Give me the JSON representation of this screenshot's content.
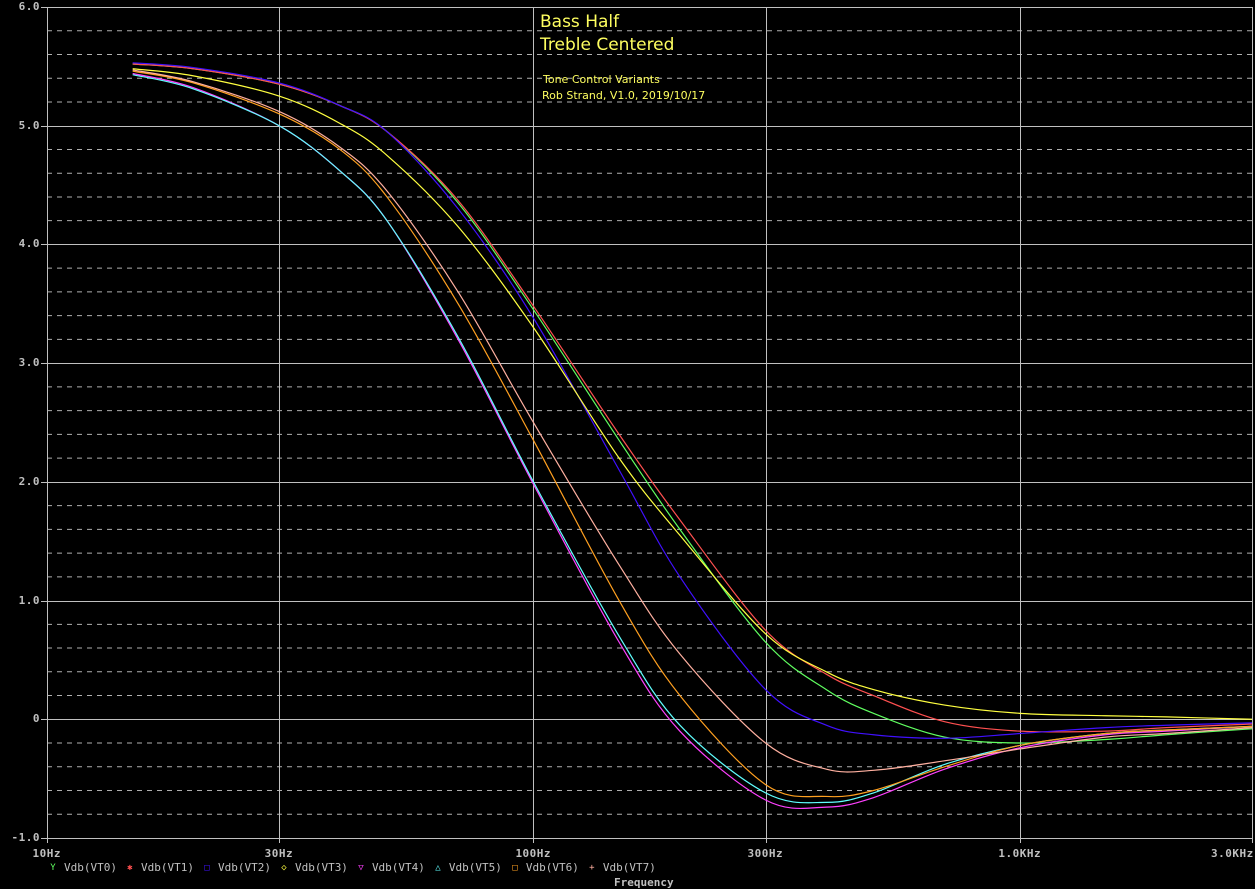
{
  "title_lines": [
    "Bass Half",
    "Treble Centered"
  ],
  "subtitle_lines": [
    "Tone Control Variants",
    "Rob Strand, V1.0, 2019/10/17"
  ],
  "chart_data": {
    "type": "line",
    "title": "Bass Half / Treble Centered",
    "subtitle": "Tone Control Variants — Rob Strand, V1.0, 2019/10/17",
    "xlabel": "Frequency",
    "ylabel": "",
    "xscale": "log",
    "xlim": [
      10,
      3000
    ],
    "ylim": [
      -1.0,
      6.0
    ],
    "grid": true,
    "legend_position": "bottom",
    "x_ticks": [
      {
        "value": 10,
        "label": "10Hz"
      },
      {
        "value": 30,
        "label": "30Hz"
      },
      {
        "value": 100,
        "label": "100Hz"
      },
      {
        "value": 300,
        "label": "300Hz"
      },
      {
        "value": 1000,
        "label": "1.0KHz"
      },
      {
        "value": 3000,
        "label": "3.0KHz"
      }
    ],
    "y_ticks": [
      {
        "value": 6,
        "label": "6.0"
      },
      {
        "value": 5,
        "label": "5.0"
      },
      {
        "value": 4,
        "label": "4.0"
      },
      {
        "value": 3,
        "label": "3.0"
      },
      {
        "value": 2,
        "label": "2.0"
      },
      {
        "value": 1,
        "label": "1.0"
      },
      {
        "value": 0,
        "label": "0"
      },
      {
        "value": -1,
        "label": "-1.0"
      }
    ],
    "x": [
      15,
      20,
      30,
      40,
      50,
      70,
      100,
      150,
      200,
      300,
      400,
      500,
      700,
      1000,
      1500,
      2000,
      3000
    ],
    "series": [
      {
        "name": "Vdb(VT0)",
        "color": "#60ff60",
        "marker": "Y",
        "values": [
          5.52,
          5.48,
          5.35,
          5.17,
          4.95,
          4.35,
          3.45,
          2.35,
          1.6,
          0.65,
          0.25,
          0.05,
          -0.15,
          -0.2,
          -0.17,
          -0.13,
          -0.08
        ]
      },
      {
        "name": "Vdb(VT1)",
        "color": "#ff5050",
        "marker": "✱",
        "values": [
          5.52,
          5.48,
          5.35,
          5.17,
          4.95,
          4.37,
          3.48,
          2.4,
          1.68,
          0.75,
          0.38,
          0.2,
          -0.02,
          -0.1,
          -0.1,
          -0.07,
          -0.04
        ]
      },
      {
        "name": "Vdb(VT2)",
        "color": "#4010ff",
        "marker": "□",
        "values": [
          5.53,
          5.49,
          5.36,
          5.17,
          4.95,
          4.3,
          3.38,
          2.1,
          1.2,
          0.25,
          -0.05,
          -0.13,
          -0.16,
          -0.12,
          -0.07,
          -0.05,
          -0.03
        ]
      },
      {
        "name": "Vdb(VT3)",
        "color": "#ffff40",
        "marker": "◇",
        "values": [
          5.48,
          5.42,
          5.25,
          5.02,
          4.75,
          4.15,
          3.3,
          2.2,
          1.55,
          0.72,
          0.4,
          0.25,
          0.12,
          0.05,
          0.03,
          0.02,
          0.0
        ]
      },
      {
        "name": "Vdb(VT4)",
        "color": "#ff40ff",
        "marker": "▽",
        "values": [
          5.44,
          5.32,
          5.0,
          4.62,
          4.2,
          3.2,
          1.98,
          0.65,
          -0.1,
          -0.68,
          -0.74,
          -0.66,
          -0.42,
          -0.24,
          -0.13,
          -0.1,
          -0.06
        ]
      },
      {
        "name": "Vdb(VT5)",
        "color": "#60ffff",
        "marker": "△",
        "values": [
          5.43,
          5.31,
          5.0,
          4.62,
          4.2,
          3.22,
          2.0,
          0.7,
          -0.05,
          -0.62,
          -0.7,
          -0.62,
          -0.38,
          -0.22,
          -0.12,
          -0.09,
          -0.06
        ]
      },
      {
        "name": "Vdb(VT6)",
        "color": "#ffa020",
        "marker": "□",
        "values": [
          5.46,
          5.36,
          5.1,
          4.8,
          4.4,
          3.5,
          2.35,
          1.0,
          0.2,
          -0.55,
          -0.65,
          -0.6,
          -0.4,
          -0.22,
          -0.12,
          -0.09,
          -0.06
        ]
      },
      {
        "name": "Vdb(VT7)",
        "color": "#ffb0a0",
        "marker": "+",
        "values": [
          5.47,
          5.37,
          5.12,
          4.82,
          4.45,
          3.6,
          2.5,
          1.3,
          0.55,
          -0.2,
          -0.42,
          -0.43,
          -0.35,
          -0.25,
          -0.15,
          -0.12,
          -0.07
        ]
      }
    ]
  },
  "legend": [
    {
      "label": "Vdb(VT0)",
      "marker": "Y",
      "color": "#60ff60"
    },
    {
      "label": "Vdb(VT1)",
      "marker": "✱",
      "color": "#ff5050"
    },
    {
      "label": "Vdb(VT2)",
      "marker": "□",
      "color": "#4010ff"
    },
    {
      "label": "Vdb(VT3)",
      "marker": "◇",
      "color": "#ffff40"
    },
    {
      "label": "Vdb(VT4)",
      "marker": "▽",
      "color": "#ff40ff"
    },
    {
      "label": "Vdb(VT5)",
      "marker": "△",
      "color": "#60ffff"
    },
    {
      "label": "Vdb(VT6)",
      "marker": "□",
      "color": "#ffa020"
    },
    {
      "label": "Vdb(VT7)",
      "marker": "+",
      "color": "#ffb0a0"
    }
  ],
  "x_axis_title": "Frequency"
}
